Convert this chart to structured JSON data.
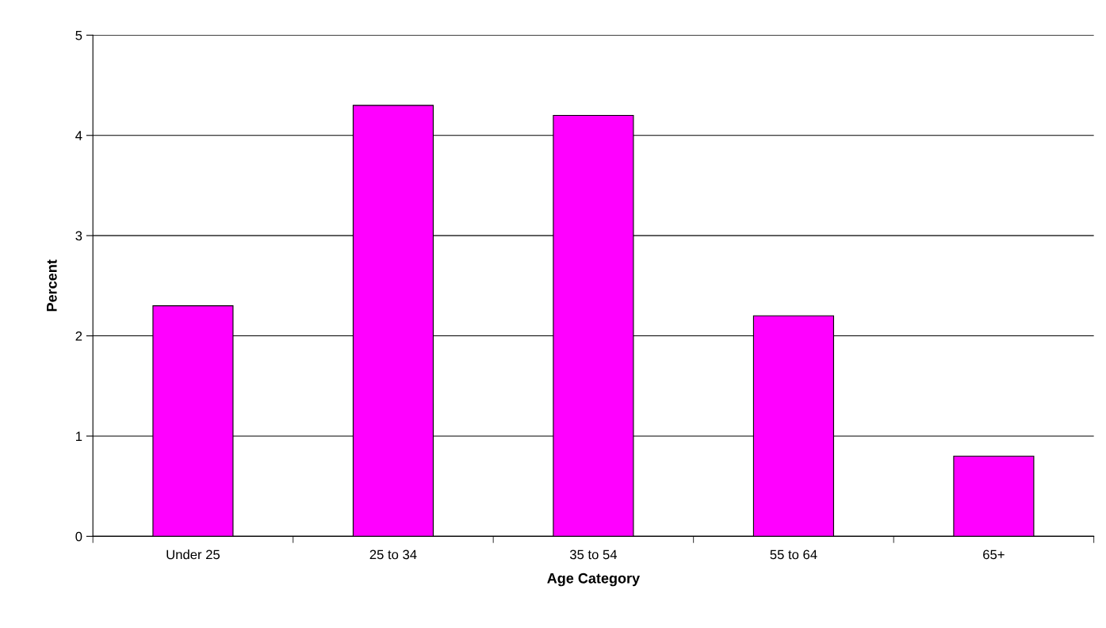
{
  "chart_data": {
    "type": "bar",
    "xlabel": "Age Category",
    "ylabel": "Percent",
    "categories": [
      "Under 25",
      "25 to 34",
      "35 to 54",
      "55 to 64",
      "65+"
    ],
    "values": [
      2.3,
      4.3,
      4.2,
      2.2,
      0.8
    ],
    "color": "#ff00ff",
    "ylim": [
      0,
      5
    ],
    "yticks": [
      0,
      1,
      2,
      3,
      4,
      5
    ],
    "grid": "y",
    "legend": false
  }
}
